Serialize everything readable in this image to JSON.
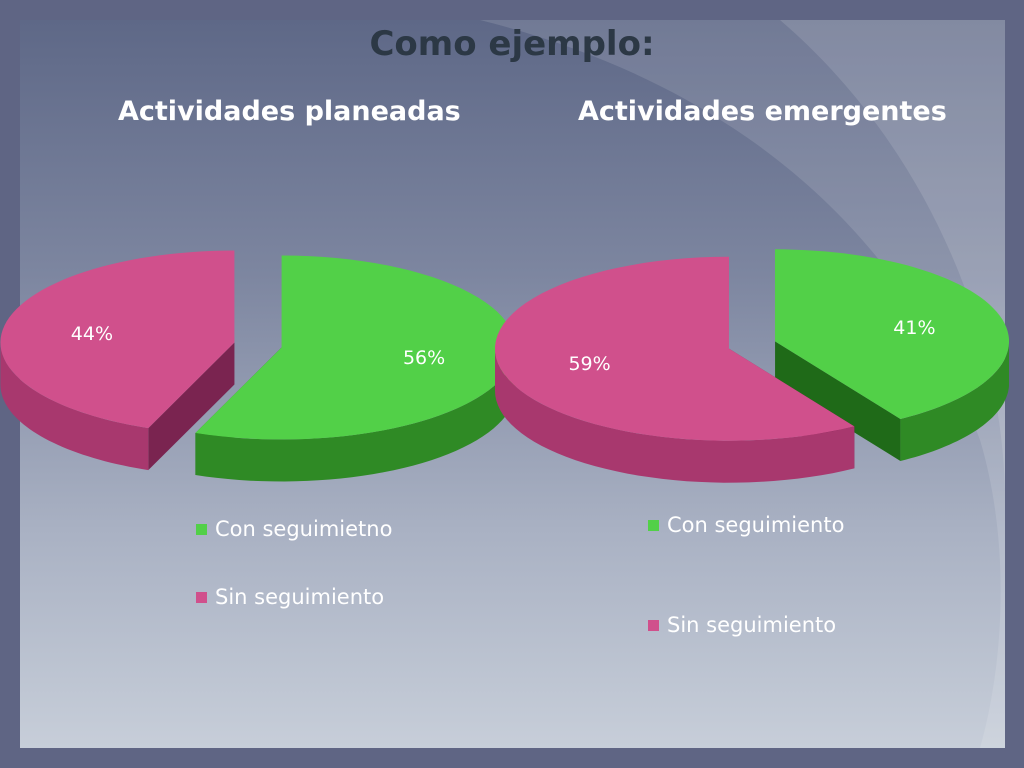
{
  "slide": {
    "title": "Como ejemplo:"
  },
  "colors": {
    "green": "#52d048",
    "pink": "#d0508c"
  },
  "chart_data": [
    {
      "type": "pie",
      "title": "Actividades planeadas",
      "categories": [
        "Con seguimietno",
        "Sin seguimiento"
      ],
      "values": [
        56,
        44
      ],
      "labels": [
        "56%",
        "44%"
      ],
      "legend": "bottom"
    },
    {
      "type": "pie",
      "title": "Actividades emergentes",
      "categories": [
        "Con seguimiento",
        "Sin seguimiento"
      ],
      "values": [
        41,
        59
      ],
      "labels": [
        "41%",
        "59%"
      ],
      "legend": "bottom"
    }
  ]
}
